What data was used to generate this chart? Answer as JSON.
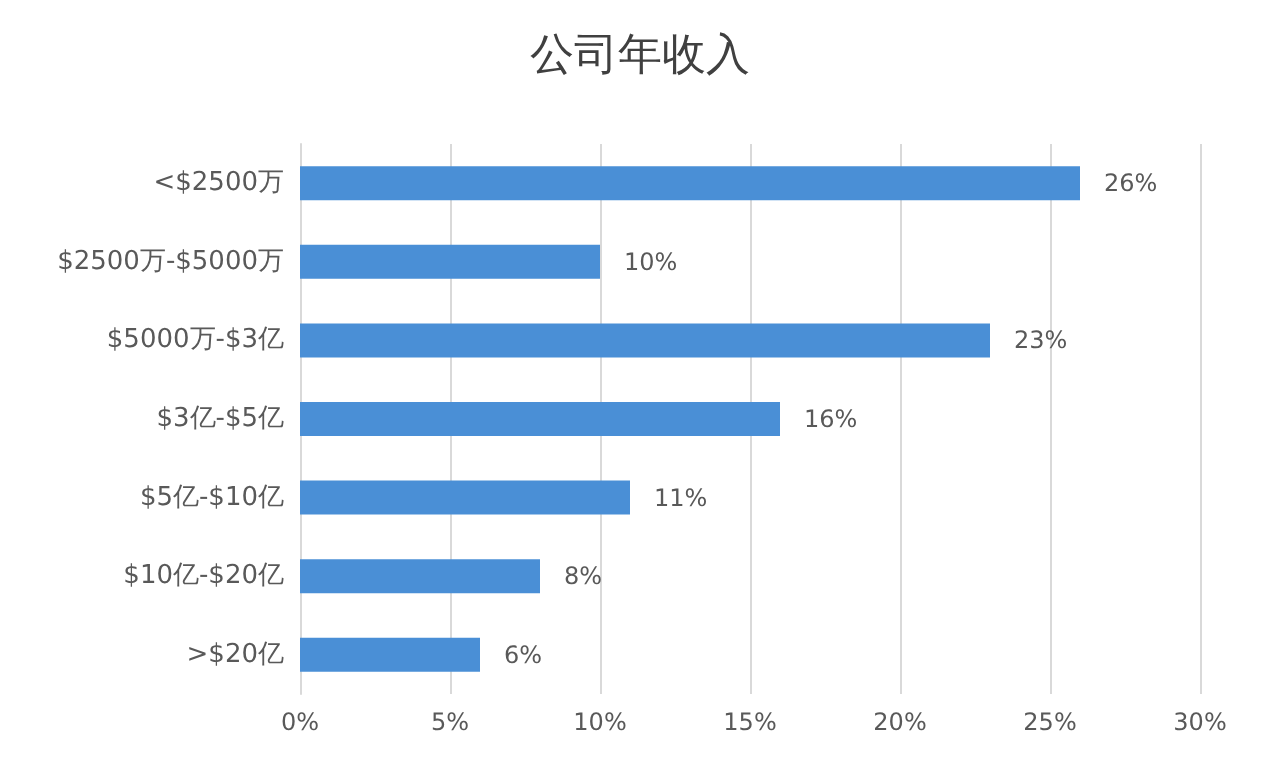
{
  "chart_data": {
    "type": "bar",
    "orientation": "horizontal",
    "title": "公司年收入",
    "categories": [
      "<$2500万",
      "$2500万-$5000万",
      "$5000万-$3亿",
      "$3亿-$5亿",
      "$5亿-$10亿",
      "$10亿-$20亿",
      ">$20亿"
    ],
    "values": [
      26,
      10,
      23,
      16,
      11,
      8,
      6
    ],
    "value_labels": [
      "26%",
      "10%",
      "23%",
      "16%",
      "11%",
      "8%",
      "6%"
    ],
    "color": "#4a8fd6",
    "xlim": [
      0,
      30
    ],
    "xticks": [
      {
        "value": 0,
        "label": "0%"
      },
      {
        "value": 5,
        "label": "5%"
      },
      {
        "value": 10,
        "label": "10%"
      },
      {
        "value": 15,
        "label": "15%"
      },
      {
        "value": 20,
        "label": "20%"
      },
      {
        "value": 25,
        "label": "25%"
      },
      {
        "value": 30,
        "label": "30%"
      }
    ],
    "grid": "x"
  }
}
